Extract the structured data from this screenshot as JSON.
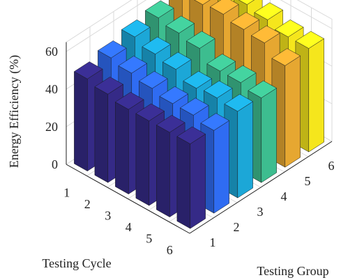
{
  "chart_data": {
    "type": "bar3d",
    "xlabel": "Testing Cycle",
    "ylabel": "Testing Group",
    "zlabel": "Energy Efficiency (%)",
    "x_ticks": [
      "1",
      "2",
      "3",
      "4",
      "5",
      "6"
    ],
    "y_ticks": [
      "1",
      "2",
      "3",
      "4",
      "5",
      "6"
    ],
    "z_ticks": [
      "0",
      "20",
      "40",
      "60"
    ],
    "zlim": [
      0,
      65
    ],
    "grid": true,
    "group_colors": [
      "#352a87",
      "#2f6cf2",
      "#1ca7d7",
      "#3dbd8f",
      "#e6a731",
      "#f5e61c"
    ],
    "series": [
      {
        "name": "",
        "group": "1",
        "values": [
          49,
          47,
          45,
          45,
          45,
          45
        ]
      },
      {
        "name": "",
        "group": "2",
        "values": [
          52,
          50,
          48,
          46,
          46,
          44
        ]
      },
      {
        "name": "",
        "group": "3",
        "values": [
          55,
          52,
          50,
          46,
          47,
          46
        ]
      },
      {
        "name": "",
        "group": "4",
        "values": [
          57,
          55,
          53,
          47,
          47,
          45
        ]
      },
      {
        "name": "",
        "group": "5",
        "values": [
          61,
          62,
          63,
          61,
          60,
          54
        ]
      },
      {
        "name": "",
        "group": "6",
        "values": [
          64,
          64,
          60,
          58,
          55,
          55
        ]
      }
    ]
  }
}
